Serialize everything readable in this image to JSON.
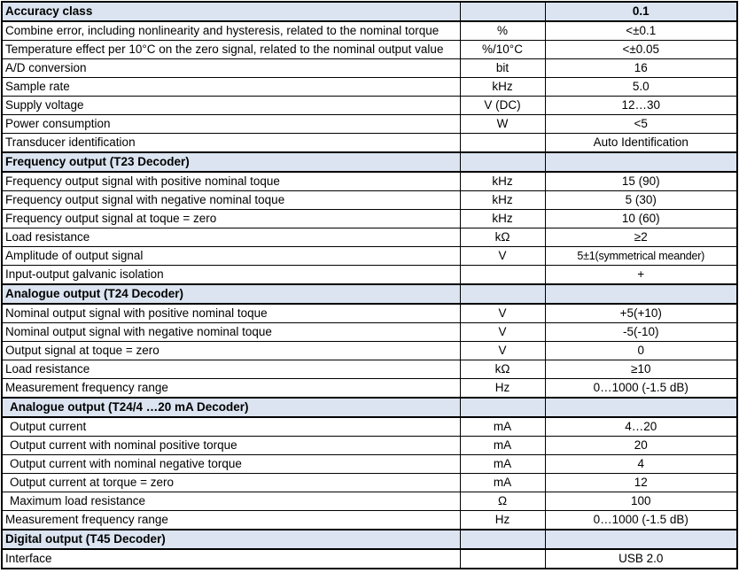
{
  "table": {
    "name": "torque-transducer-specifications",
    "section_bg": "#dbe4f0",
    "border_color": "#000000",
    "text_color": "#000000",
    "columns": [
      "parameter",
      "unit",
      "value"
    ],
    "rows": [
      {
        "type": "section",
        "label": "Accuracy class",
        "unit": "",
        "value": "0.1"
      },
      {
        "type": "data",
        "label": "Combine error, including nonlinearity and hysteresis, related to the nominal torque",
        "unit": "%",
        "value": "<±0.1"
      },
      {
        "type": "data",
        "label": "Temperature effect per 10°C on the zero signal, related to the nominal output value",
        "unit": "%/10°C",
        "value": "<±0.05"
      },
      {
        "type": "data",
        "label": "A/D conversion",
        "unit": "bit",
        "value": "16"
      },
      {
        "type": "data",
        "label": "Sample rate",
        "unit": "kHz",
        "value": "5.0"
      },
      {
        "type": "data",
        "label": "Supply voltage",
        "unit": "V (DC)",
        "value": "12…30"
      },
      {
        "type": "data",
        "label": "Power consumption",
        "unit": "W",
        "value": "<5"
      },
      {
        "type": "data",
        "label": "Transducer identification",
        "unit": "",
        "value": "Auto Identification"
      },
      {
        "type": "section",
        "label": "Frequency output (T23 Decoder)",
        "unit": "",
        "value": ""
      },
      {
        "type": "data",
        "label": "Frequency output signal with positive nominal toque",
        "unit": "kHz",
        "value": "15 (90)"
      },
      {
        "type": "data",
        "label": "Frequency output signal with negative nominal toque",
        "unit": "kHz",
        "value": "5 (30)"
      },
      {
        "type": "data",
        "label": "Frequency output signal at toque = zero",
        "unit": "kHz",
        "value": "10 (60)"
      },
      {
        "type": "data",
        "label": "Load resistance",
        "unit": "kΩ",
        "value": "≥2"
      },
      {
        "type": "data",
        "label": "Amplitude of output signal",
        "unit": "V",
        "value": "5±1(symmetrical meander)",
        "small": true
      },
      {
        "type": "data",
        "label": "Input-output galvanic isolation",
        "unit": "",
        "value": "+"
      },
      {
        "type": "section",
        "label": "Analogue output (T24 Decoder)",
        "unit": "",
        "value": ""
      },
      {
        "type": "data",
        "label": "Nominal output signal with positive nominal toque",
        "unit": "V",
        "value": "+5(+10)"
      },
      {
        "type": "data",
        "label": "Nominal output signal with negative nominal toque",
        "unit": "V",
        "value": "-5(-10)"
      },
      {
        "type": "data",
        "label": "Output signal at toque = zero",
        "unit": "V",
        "value": "0"
      },
      {
        "type": "data",
        "label": "Load resistance",
        "unit": "kΩ",
        "value": "≥10"
      },
      {
        "type": "data",
        "label": "Measurement frequency range",
        "unit": "Hz",
        "value": "0…1000 (-1.5 dB)"
      },
      {
        "type": "section",
        "label": "Analogue output (T24/4 …20 mA Decoder)",
        "unit": "",
        "value": "",
        "indent": true
      },
      {
        "type": "data",
        "label": "Output current",
        "unit": "mA",
        "value": "4…20",
        "indent": true
      },
      {
        "type": "data",
        "label": "Output current with nominal positive torque",
        "unit": "mA",
        "value": "20",
        "indent": true
      },
      {
        "type": "data",
        "label": "Output current with nominal negative torque",
        "unit": "mA",
        "value": "4",
        "indent": true
      },
      {
        "type": "data",
        "label": "Output current at torque = zero",
        "unit": "mA",
        "value": "12",
        "indent": true
      },
      {
        "type": "data",
        "label": "Maximum load resistance",
        "unit": "Ω",
        "value": "100",
        "indent": true
      },
      {
        "type": "data",
        "label": "Measurement frequency range",
        "unit": "Hz",
        "value": "0…1000 (-1.5 dB)"
      },
      {
        "type": "section",
        "label": "Digital output (T45 Decoder)",
        "unit": "",
        "value": ""
      },
      {
        "type": "data",
        "label": "Interface",
        "unit": "",
        "value": "USB 2.0"
      }
    ]
  }
}
